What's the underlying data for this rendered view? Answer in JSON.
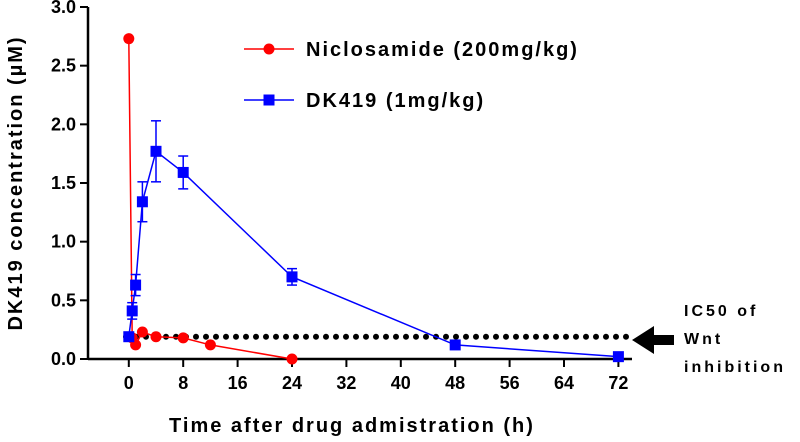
{
  "chart_data": {
    "type": "line",
    "xlabel": "Time after drug admistration (h)",
    "ylabel": "DK419 concentration (µM)",
    "xlim": [
      -6,
      74
    ],
    "ylim": [
      0,
      3.0
    ],
    "xticks": [
      0,
      8,
      16,
      24,
      32,
      40,
      48,
      56,
      64,
      72
    ],
    "yticks": [
      0.0,
      0.5,
      1.0,
      1.5,
      2.0,
      2.5,
      3.0
    ],
    "xtick_labels": [
      "0",
      "8",
      "16",
      "24",
      "32",
      "40",
      "48",
      "56",
      "64",
      "72"
    ],
    "ytick_labels": [
      "0.0",
      "0.5",
      "1.0",
      "1.5",
      "2.0",
      "2.5",
      "3.0"
    ],
    "legend_position": "top-center",
    "series": [
      {
        "name": "Niclosamide (200mg/kg)",
        "color": "#ff0000",
        "marker": "circle",
        "x": [
          0,
          0.5,
          1,
          2,
          4,
          8,
          12,
          24
        ],
        "y": [
          2.73,
          0.18,
          0.12,
          0.23,
          0.19,
          0.18,
          0.12,
          0.0
        ],
        "err": [
          0,
          0,
          0,
          0,
          0,
          0,
          0,
          0
        ]
      },
      {
        "name": "DK419 (1mg/kg)",
        "color": "#0000ff",
        "marker": "square",
        "x": [
          0,
          0.5,
          1,
          2,
          4,
          8,
          24,
          48,
          72
        ],
        "y": [
          0.19,
          0.41,
          0.63,
          1.34,
          1.77,
          1.59,
          0.7,
          0.12,
          0.02
        ],
        "err": [
          0,
          0.07,
          0.09,
          0.17,
          0.26,
          0.14,
          0.07,
          0,
          0
        ]
      }
    ],
    "reference_line": {
      "y": 0.19,
      "style": "dotted",
      "color": "#000000",
      "label_lines": [
        "IC50 of",
        "Wnt",
        "inhibition"
      ]
    }
  }
}
